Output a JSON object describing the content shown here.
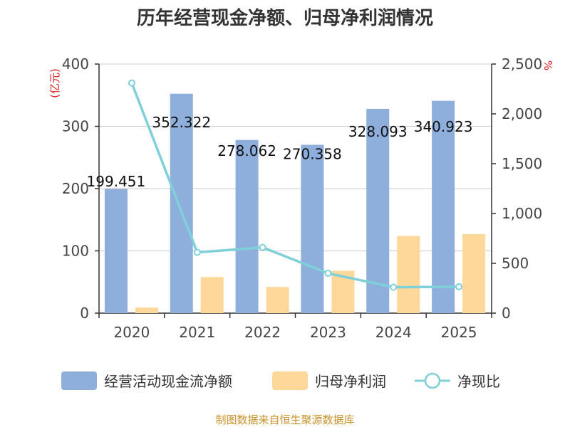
{
  "chart_data": {
    "type": "bar",
    "title": "历年经营现金净额、归母净利润情况",
    "categories": [
      "2020",
      "2021",
      "2022",
      "2023",
      "2024",
      "2025"
    ],
    "y_left": {
      "unit": "(亿元)",
      "ylim": [
        0,
        400
      ],
      "ticks": [
        0,
        100,
        200,
        300,
        400
      ]
    },
    "y_right": {
      "unit": "%",
      "ylim": [
        0,
        2500
      ],
      "ticks": [
        "0",
        "500",
        "1,000",
        "1,500",
        "2,000",
        "2,500"
      ]
    },
    "series": [
      {
        "name": "经营活动现金流净额",
        "kind": "bar",
        "color": "#8eaedb",
        "values": [
          199.451,
          352.322,
          278.062,
          270.358,
          328.093,
          340.923
        ],
        "labels": [
          "199.451",
          "352.322",
          "278.062",
          "270.358",
          "328.093",
          "340.923"
        ]
      },
      {
        "name": "归母净利润",
        "kind": "bar",
        "color": "#fdd89a",
        "values": [
          9,
          58,
          42,
          68,
          124,
          127
        ]
      },
      {
        "name": "净现比",
        "kind": "line",
        "axis": "right",
        "color": "#7fd0d8",
        "values": [
          2310,
          610,
          660,
          400,
          260,
          265
        ]
      }
    ],
    "grid": true,
    "legend_position": "bottom"
  },
  "footer": {
    "source": "制图数据来自恒生聚源数据库"
  }
}
